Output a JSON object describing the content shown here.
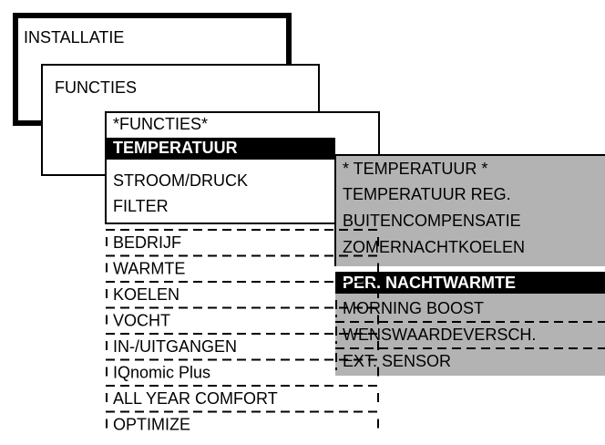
{
  "menus": [
    {
      "title": "INSTALLATIE"
    },
    {
      "title": "FUNCTIES"
    }
  ],
  "functies_menu": {
    "header": "*FUNCTIES*",
    "selected": "TEMPERATUUR",
    "items": [
      "STROOM/DRUCK",
      "FILTER"
    ],
    "hidden_items": [
      "BEDRIJF",
      "WARMTE",
      "KOELEN",
      "VOCHT",
      "IN-/UITGANGEN",
      "IQnomic Plus",
      "ALL YEAR COMFORT",
      "OPTIMIZE"
    ]
  },
  "temperatuur_menu": {
    "header": "* TEMPERATUUR *",
    "items": [
      "TEMPERATUUR REG.",
      "BUITENCOMPENSATIE",
      "ZOMERNACHTKOELEN"
    ],
    "selected": "PER. NACHTWARMTE",
    "hidden_items": [
      "MORNING BOOST",
      "WENSWAARDEVERSCH.",
      "EXT. SENSOR"
    ]
  }
}
